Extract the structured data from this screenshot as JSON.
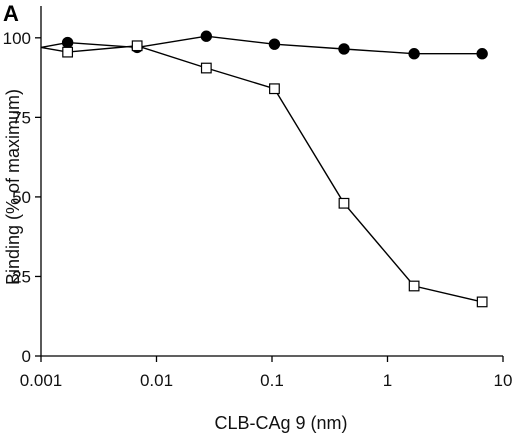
{
  "chart_data": {
    "type": "line",
    "panel_label": "A",
    "title": "",
    "xlabel": "CLB-CAg 9 (nm)",
    "ylabel": "Binding (% of maximum)",
    "xscale": "log",
    "xlim": [
      0.001,
      10
    ],
    "ylim": [
      0,
      110
    ],
    "xticks": [
      0.001,
      0.01,
      0.1,
      1,
      10
    ],
    "xtick_labels": [
      "0.001",
      "0.01",
      "0.1",
      "1",
      "10"
    ],
    "yticks": [
      0,
      25,
      50,
      75,
      100
    ],
    "ytick_labels": [
      "0",
      "25",
      "50",
      "75",
      "100"
    ],
    "grid": false,
    "legend": "none",
    "series": [
      {
        "marker": "filled-circle",
        "color": "#000000",
        "points": [
          {
            "x": 0.001,
            "y": 97
          },
          {
            "x": 0.0017,
            "y": 98.5
          },
          {
            "x": 0.0068,
            "y": 97
          },
          {
            "x": 0.027,
            "y": 100.5
          },
          {
            "x": 0.105,
            "y": 98
          },
          {
            "x": 0.42,
            "y": 96.5
          },
          {
            "x": 1.7,
            "y": 95
          },
          {
            "x": 6.6,
            "y": 95
          }
        ]
      },
      {
        "marker": "open-square",
        "color": "#000000",
        "points": [
          {
            "x": 0.001,
            "y": 97
          },
          {
            "x": 0.0017,
            "y": 95.5
          },
          {
            "x": 0.0068,
            "y": 97.5
          },
          {
            "x": 0.027,
            "y": 90.5
          },
          {
            "x": 0.105,
            "y": 84
          },
          {
            "x": 0.42,
            "y": 48
          },
          {
            "x": 1.7,
            "y": 22
          },
          {
            "x": 6.6,
            "y": 17
          }
        ]
      }
    ]
  }
}
